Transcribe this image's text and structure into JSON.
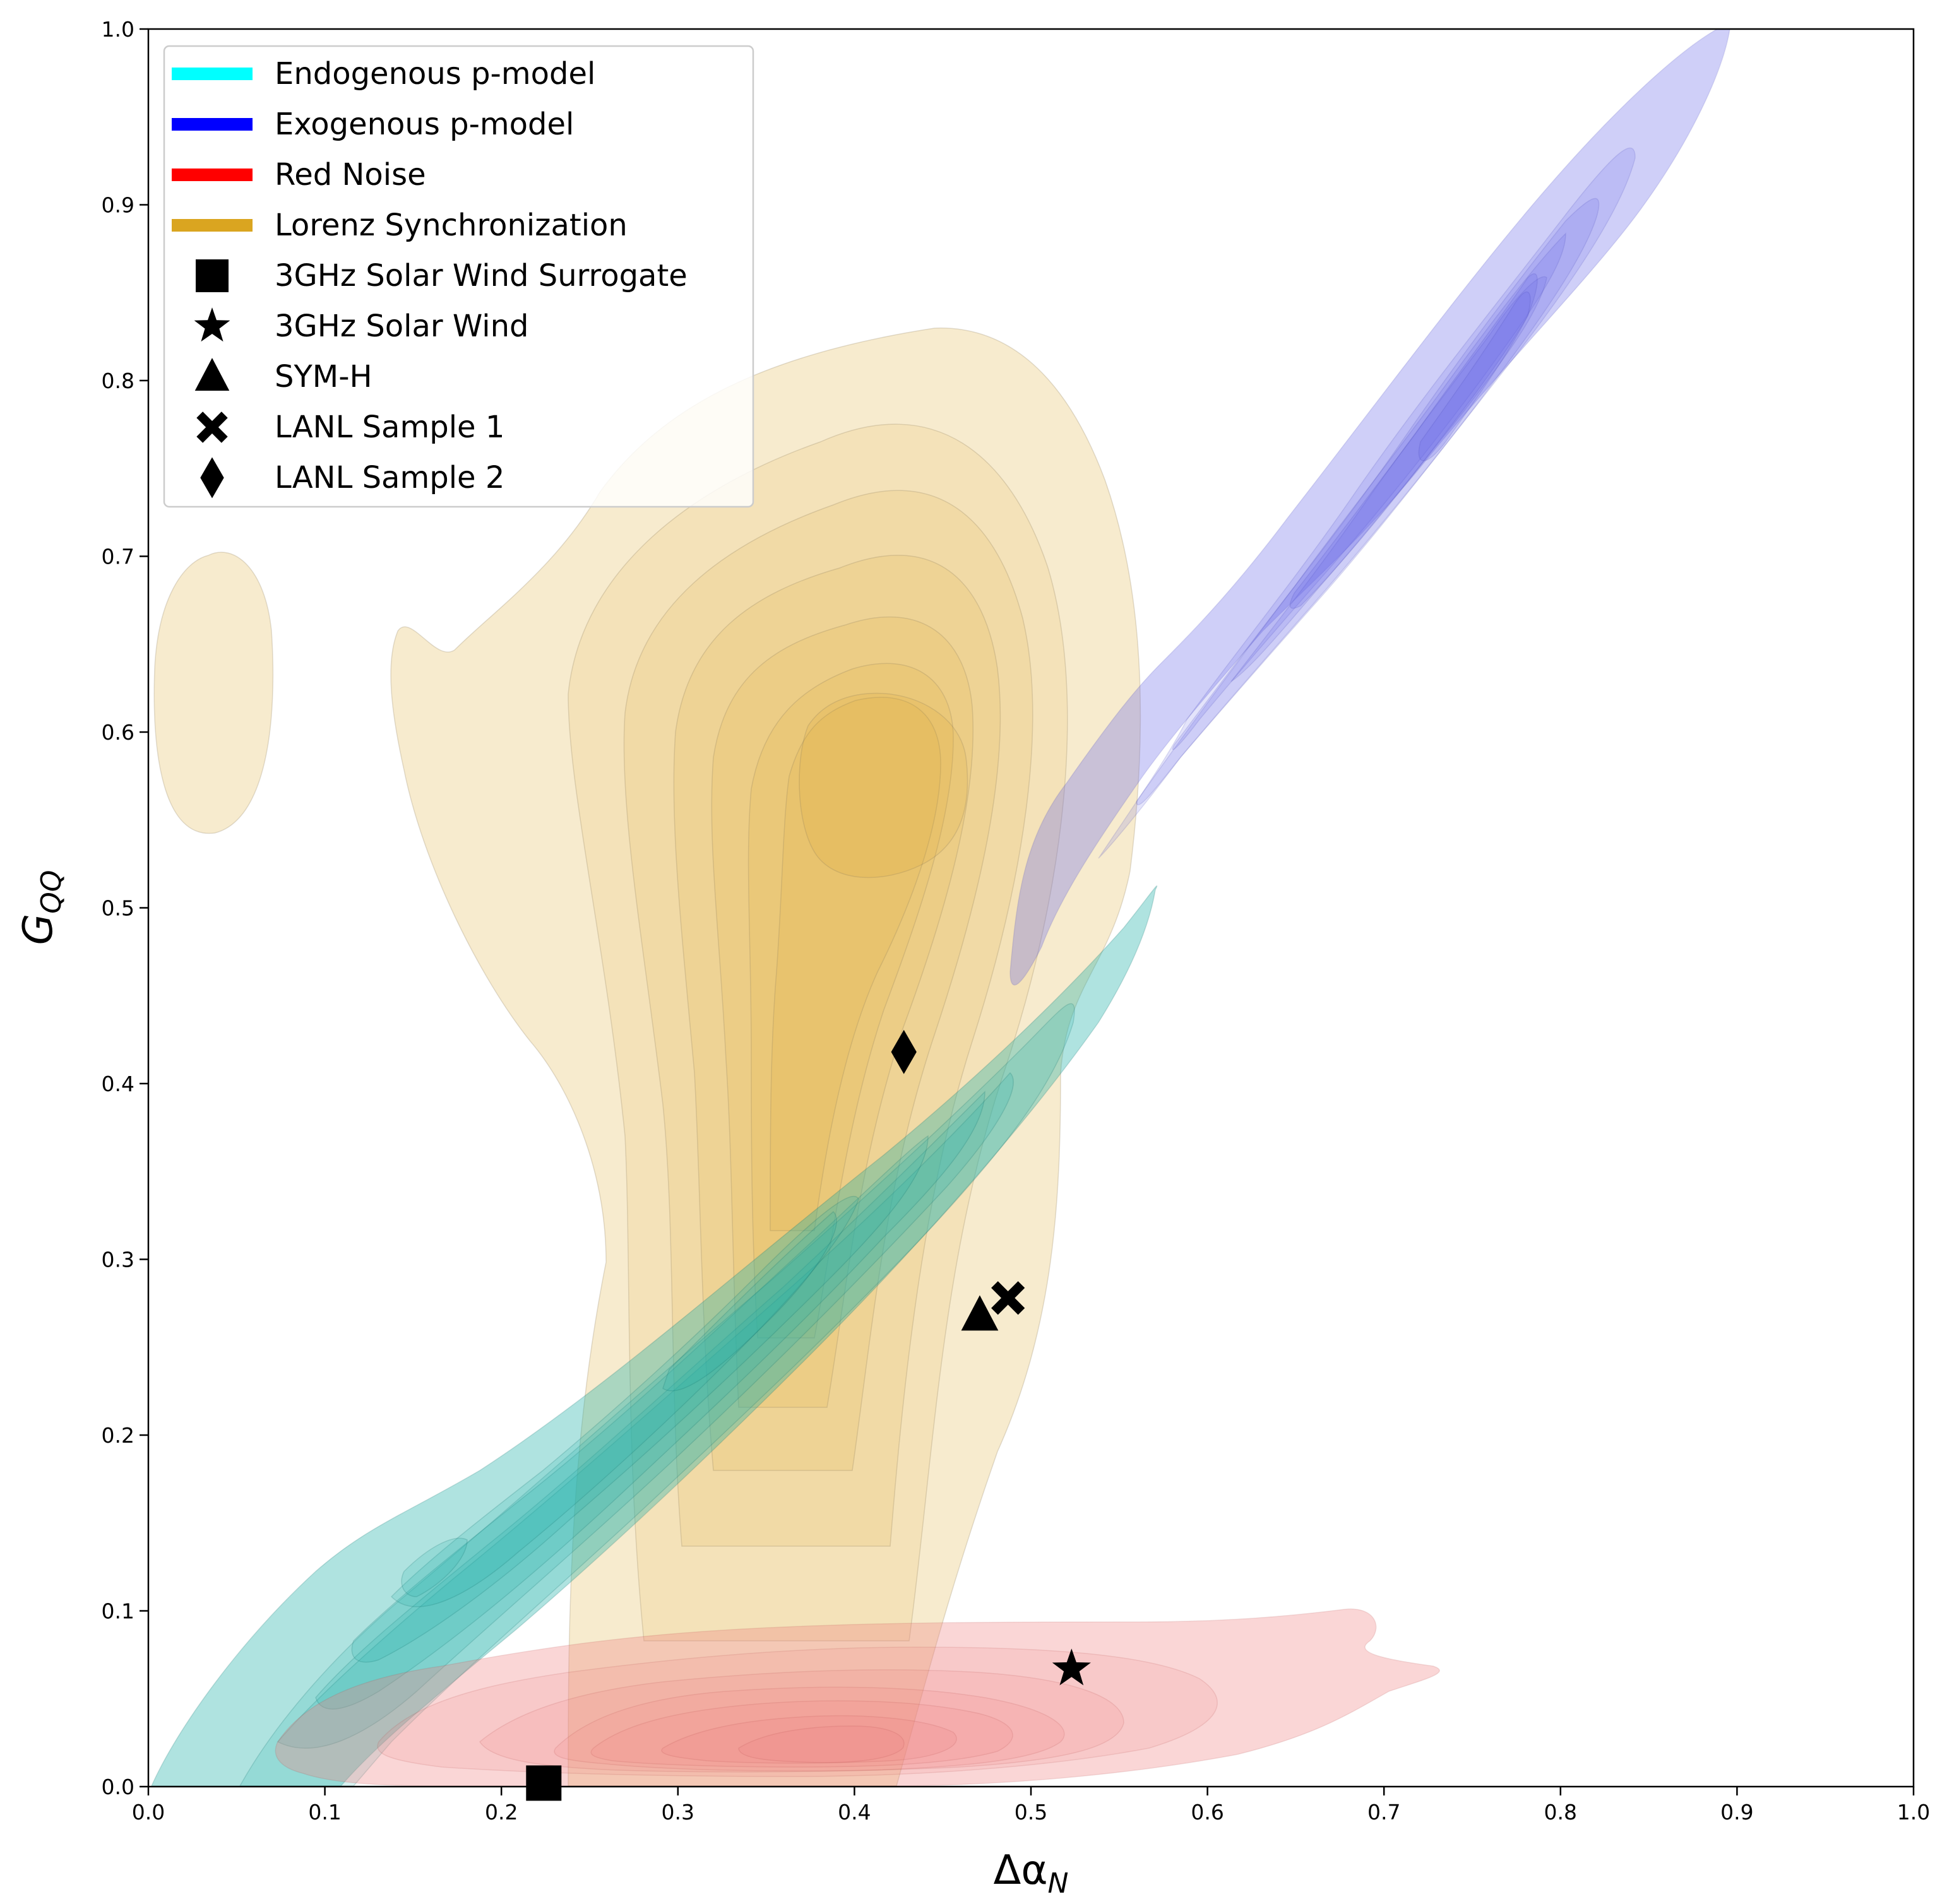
{
  "chart_data": {
    "type": "scatter",
    "xlabel_base": "Δα",
    "xlabel_sub": "N",
    "ylabel_base": "G",
    "ylabel_sub": "QQ",
    "xlim": [
      0.0,
      1.0
    ],
    "ylim": [
      0.0,
      1.0
    ],
    "xticks": [
      "0.0",
      "0.1",
      "0.2",
      "0.3",
      "0.4",
      "0.5",
      "0.6",
      "0.7",
      "0.8",
      "0.9",
      "1.0"
    ],
    "yticks": [
      "0.0",
      "0.1",
      "0.2",
      "0.3",
      "0.4",
      "0.5",
      "0.6",
      "0.7",
      "0.8",
      "0.9",
      "1.0"
    ],
    "grid": false,
    "legend_position": "top-left",
    "legend": [
      {
        "label": "Endogenous p-model",
        "kind": "line",
        "color": "#00ffff"
      },
      {
        "label": "Exogenous p-model",
        "kind": "line",
        "color": "#0000ff"
      },
      {
        "label": "Red Noise",
        "kind": "line",
        "color": "#ff0000"
      },
      {
        "label": "Lorenz Synchronization",
        "kind": "line",
        "color": "#daa520"
      },
      {
        "label": "3GHz Solar Wind Surrogate",
        "kind": "marker",
        "marker": "square"
      },
      {
        "label": "3GHz Solar Wind",
        "kind": "marker",
        "marker": "star"
      },
      {
        "label": "SYM-H",
        "kind": "marker",
        "marker": "triangle"
      },
      {
        "label": "LANL Sample 1",
        "kind": "marker",
        "marker": "x"
      },
      {
        "label": "LANL Sample 2",
        "kind": "marker",
        "marker": "diamond"
      }
    ],
    "points": [
      {
        "name": "3GHz Solar Wind Surrogate",
        "marker": "square",
        "x": 0.224,
        "y": 0.002
      },
      {
        "name": "3GHz Solar Wind",
        "marker": "star",
        "x": 0.523,
        "y": 0.067
      },
      {
        "name": "SYM-H",
        "marker": "triangle",
        "x": 0.471,
        "y": 0.268
      },
      {
        "name": "LANL Sample 1",
        "marker": "x",
        "x": 0.487,
        "y": 0.278
      },
      {
        "name": "LANL Sample 2",
        "marker": "diamond",
        "x": 0.428,
        "y": 0.418
      }
    ],
    "density_regions": [
      {
        "series": "Lorenz Synchronization",
        "color": "#daa520",
        "levels": 8,
        "cx": 0.39,
        "cy": 0.58,
        "peak": [
          0.4,
          0.58
        ]
      },
      {
        "series": "Endogenous p-model",
        "color": "#20b2aa",
        "levels": 8,
        "axis_from": [
          0.0,
          0.0
        ],
        "axis_to": [
          0.57,
          0.52
        ],
        "peak": [
          0.35,
          0.28
        ]
      },
      {
        "series": "Exogenous p-model",
        "color": "#7070e0",
        "levels": 8,
        "axis_from": [
          0.52,
          0.47
        ],
        "axis_to": [
          0.9,
          1.0
        ],
        "peak": [
          0.76,
          0.85
        ]
      },
      {
        "series": "Red Noise",
        "color": "#f08080",
        "levels": 8,
        "cx": 0.4,
        "cy": 0.04,
        "peak": [
          0.39,
          0.025
        ]
      }
    ]
  }
}
